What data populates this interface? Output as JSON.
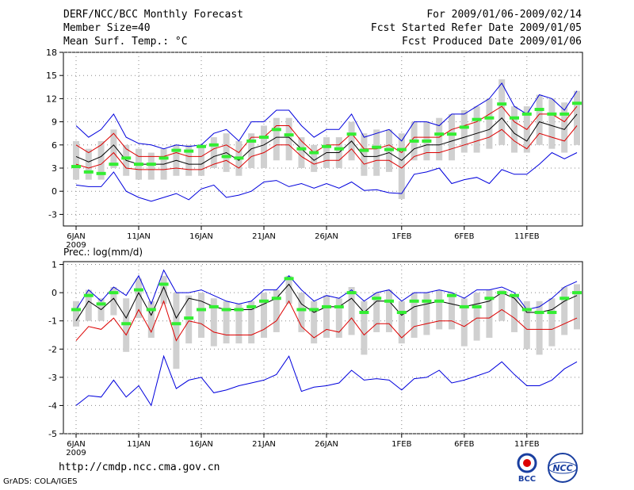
{
  "header": {
    "title": "DERF/NCC/BCC Monthly Forecast",
    "member_size": "Member Size=40",
    "variable": "Mean Surf. Temp.: °C",
    "period": "For 2009/01/06-2009/02/14",
    "started": "Fcst Started Refer Date 2009/01/05",
    "produced": "Fcst Produced Date 2009/01/06"
  },
  "footer": {
    "url": "http://cmdp.ncc.cma.gov.cn",
    "grads": "GrADS: COLA/IGES"
  },
  "logos": {
    "bcc": "BCC",
    "ncc": "NCC"
  },
  "colors": {
    "mean": "#000000",
    "spread": "#dd0000",
    "extreme": "#0000dd",
    "box": "#d0d0d0",
    "obs": "#33ee33"
  },
  "chart_data": [
    {
      "type": "line",
      "title": "Mean Surf. Temp.: °C",
      "ylim": [
        -4.5,
        18
      ],
      "yticks": [
        -3,
        0,
        3,
        6,
        9,
        12,
        15,
        18
      ],
      "xticks": [
        {
          "day": 0,
          "label": "6JAN",
          "sub": "2009"
        },
        {
          "day": 5,
          "label": "11JAN"
        },
        {
          "day": 10,
          "label": "16JAN"
        },
        {
          "day": 15,
          "label": "21JAN"
        },
        {
          "day": 20,
          "label": "26JAN"
        },
        {
          "day": 26,
          "label": "1FEB"
        },
        {
          "day": 31,
          "label": "6FEB"
        },
        {
          "day": 36,
          "label": "11FEB"
        }
      ],
      "series": [
        {
          "name": "max",
          "color": "#0000dd",
          "values": [
            8.5,
            7,
            8,
            10,
            7,
            6.2,
            6,
            5.5,
            6,
            5.8,
            6,
            7.5,
            8,
            6.5,
            9,
            9,
            10.5,
            10.5,
            8.5,
            7,
            8,
            8,
            10,
            7,
            7.5,
            8,
            6.5,
            9,
            9,
            8.5,
            10,
            10,
            11,
            12,
            14,
            11,
            10,
            12.5,
            12,
            10.5,
            13
          ]
        },
        {
          "name": "upper",
          "color": "#dd0000",
          "values": [
            6,
            5,
            6,
            7.5,
            5.5,
            4.5,
            4.5,
            4.5,
            5,
            4.5,
            4.5,
            5.5,
            6,
            5,
            7,
            7,
            8.5,
            8.5,
            6.5,
            5,
            6,
            6,
            7.5,
            5.5,
            5.5,
            6,
            5,
            7,
            7,
            7,
            8,
            8.5,
            9,
            10,
            11,
            9,
            8,
            10,
            10,
            9,
            11
          ]
        },
        {
          "name": "mean",
          "color": "#000000",
          "values": [
            4.5,
            3.8,
            4.5,
            6,
            4,
            3.5,
            3.5,
            3.5,
            4,
            3.5,
            3.5,
            4.5,
            5,
            4,
            5.5,
            6,
            7,
            7,
            5.5,
            4,
            5,
            5,
            6.5,
            4.5,
            4.5,
            5,
            4,
            5.5,
            6,
            6,
            6.5,
            7,
            7.5,
            8,
            9.5,
            7.5,
            6.5,
            9,
            8.5,
            8,
            10
          ]
        },
        {
          "name": "lower",
          "color": "#dd0000",
          "values": [
            3.5,
            3,
            3.5,
            5,
            3,
            2.8,
            2.8,
            2.8,
            3,
            2.8,
            2.8,
            3.5,
            4,
            3,
            4.5,
            5,
            6,
            6,
            4.5,
            3.5,
            4,
            4,
            5.5,
            3.5,
            4,
            4,
            3,
            4.5,
            5,
            5,
            5.5,
            6,
            6.5,
            7,
            8,
            6.5,
            5.5,
            7.5,
            7,
            6.5,
            8.5
          ]
        },
        {
          "name": "min",
          "color": "#0000dd",
          "values": [
            0.8,
            0.6,
            0.6,
            2.5,
            0,
            -0.8,
            -1.3,
            -0.8,
            -0.3,
            -1.1,
            0.3,
            0.8,
            -0.8,
            -0.5,
            0,
            1.2,
            1.4,
            0.6,
            1,
            0.4,
            1,
            0.4,
            1.2,
            0.1,
            0.2,
            -0.2,
            -0.3,
            2.2,
            2.5,
            3,
            1,
            1.5,
            1.8,
            1,
            2.8,
            2.2,
            2.2,
            3.5,
            5,
            4.2,
            5
          ]
        },
        {
          "name": "obs",
          "color": "#33ee33",
          "values": [
            3.2,
            2.5,
            2.3,
            3.5,
            4.3,
            3.5,
            3.5,
            4.3,
            5.3,
            5.2,
            5.8,
            6,
            4.5,
            4.3,
            6.5,
            7,
            8,
            7.3,
            5.5,
            5,
            5.8,
            5.5,
            7.4,
            5.3,
            5.7,
            5.4,
            5.4,
            6.5,
            6.5,
            7.4,
            7.4,
            8.3,
            9.3,
            9.5,
            11.3,
            9.5,
            10,
            10.6,
            10,
            10,
            11.4
          ]
        }
      ],
      "box_low": [
        1.5,
        1.5,
        1.5,
        3,
        2,
        1.5,
        1.5,
        1.5,
        2,
        2,
        2,
        3,
        2.5,
        2,
        3,
        3,
        4,
        4,
        3,
        2.5,
        3,
        3,
        4,
        2,
        2,
        2.5,
        -1,
        4,
        4,
        4,
        4,
        5,
        5,
        5.5,
        6,
        5,
        5,
        6,
        5.5,
        5,
        6
      ],
      "box_high": [
        6.5,
        5.5,
        6.5,
        8,
        6,
        5.5,
        5,
        5.5,
        6,
        6,
        6,
        7,
        7.5,
        6.5,
        7.5,
        8.5,
        9.5,
        9.5,
        7,
        6,
        7,
        7,
        9,
        7.5,
        8,
        8,
        7.5,
        9,
        9,
        9.5,
        10,
        10.5,
        11,
        12,
        14.5,
        11,
        11,
        12.5,
        12,
        11.5,
        13
      ]
    },
    {
      "type": "line",
      "title": "Prec.: log(mm/d)",
      "ylim": [
        -5,
        1.1
      ],
      "yticks": [
        -5,
        -4,
        -3,
        -2,
        -1,
        0,
        1
      ],
      "xticks": [
        {
          "day": 0,
          "label": "6JAN",
          "sub": "2009"
        },
        {
          "day": 5,
          "label": "11JAN"
        },
        {
          "day": 10,
          "label": "16JAN"
        },
        {
          "day": 15,
          "label": "21JAN"
        },
        {
          "day": 20,
          "label": "26JAN"
        },
        {
          "day": 26,
          "label": "1FEB"
        },
        {
          "day": 31,
          "label": "6FEB"
        },
        {
          "day": 36,
          "label": "11FEB"
        }
      ],
      "series": [
        {
          "name": "max",
          "color": "#0000dd",
          "values": [
            -0.6,
            0.1,
            -0.3,
            0.2,
            -0.1,
            0.6,
            -0.4,
            0.8,
            0,
            0,
            0.1,
            -0.1,
            -0.3,
            -0.4,
            -0.3,
            0.1,
            0.1,
            0.6,
            0.1,
            -0.3,
            -0.1,
            -0.2,
            0.1,
            -0.3,
            0,
            0.1,
            -0.3,
            0,
            0,
            0.1,
            0,
            -0.2,
            0.1,
            0.1,
            0.2,
            0,
            -0.6,
            -0.5,
            -0.2,
            0.2,
            0.4
          ]
        },
        {
          "name": "mean",
          "color": "#000000",
          "values": [
            -1,
            -0.3,
            -0.6,
            -0.2,
            -0.9,
            0,
            -0.8,
            0.2,
            -0.9,
            -0.2,
            -0.3,
            -0.5,
            -0.6,
            -0.6,
            -0.6,
            -0.4,
            -0.2,
            0.3,
            -0.4,
            -0.7,
            -0.5,
            -0.5,
            -0.2,
            -0.7,
            -0.3,
            -0.3,
            -0.8,
            -0.5,
            -0.4,
            -0.3,
            -0.4,
            -0.5,
            -0.4,
            -0.3,
            0,
            -0.2,
            -0.7,
            -0.7,
            -0.6,
            -0.3,
            -0.1
          ]
        },
        {
          "name": "lower",
          "color": "#dd0000",
          "values": [
            -1.7,
            -1.2,
            -1.3,
            -0.9,
            -1.5,
            -0.6,
            -1.4,
            -0.3,
            -1.7,
            -1,
            -1.1,
            -1.4,
            -1.5,
            -1.5,
            -1.5,
            -1.3,
            -1,
            -0.3,
            -1.2,
            -1.6,
            -1.3,
            -1.4,
            -0.9,
            -1.5,
            -1.1,
            -1.1,
            -1.6,
            -1.2,
            -1.1,
            -1,
            -1,
            -1.2,
            -0.9,
            -0.9,
            -0.6,
            -0.9,
            -1.3,
            -1.3,
            -1.3,
            -1.1,
            -0.9
          ]
        },
        {
          "name": "min",
          "color": "#0000dd",
          "values": [
            -4,
            -3.65,
            -3.7,
            -3.1,
            -3.7,
            -3.3,
            -4,
            -2.25,
            -3.4,
            -3.1,
            -3,
            -3.55,
            -3.45,
            -3.3,
            -3.2,
            -3.1,
            -2.9,
            -2.25,
            -3.5,
            -3.35,
            -3.3,
            -3.2,
            -2.75,
            -3.1,
            -3.05,
            -3.1,
            -3.45,
            -3.05,
            -3,
            -2.75,
            -3.2,
            -3.1,
            -2.95,
            -2.8,
            -2.45,
            -2.9,
            -3.3,
            -3.3,
            -3.1,
            -2.7,
            -2.45
          ]
        },
        {
          "name": "obs",
          "color": "#33ee33",
          "values": [
            -0.6,
            -0.1,
            -0.4,
            0,
            -1.1,
            0.1,
            -0.6,
            0.3,
            -1.1,
            -0.9,
            -0.6,
            -0.5,
            -0.6,
            -0.6,
            -0.5,
            -0.3,
            -0.2,
            0.5,
            -0.6,
            -0.6,
            -0.5,
            -0.5,
            0,
            -0.7,
            -0.2,
            -0.3,
            -0.7,
            -0.3,
            -0.3,
            -0.3,
            -0.1,
            -0.5,
            -0.5,
            -0.2,
            0,
            -0.1,
            -0.6,
            -0.7,
            -0.7,
            -0.2,
            0
          ]
        }
      ],
      "box_low": [
        -1.2,
        -1,
        -1,
        -0.8,
        -2.1,
        -0.9,
        -1.6,
        -0.4,
        -2.7,
        -1.8,
        -1.6,
        -1.9,
        -1.8,
        -1.8,
        -1.8,
        -1.6,
        -1.4,
        -0.4,
        -1.4,
        -1.8,
        -1.6,
        -1.6,
        -1.5,
        -2.2,
        -1.4,
        -1.4,
        -1.8,
        -1.6,
        -1.5,
        -1.3,
        -1.3,
        -1.9,
        -1.7,
        -1.6,
        -1,
        -1.4,
        -2,
        -2.2,
        -1.9,
        -1.5,
        -1.3
      ],
      "box_high": [
        -0.3,
        0.1,
        -0.2,
        0.2,
        -0.2,
        0.5,
        -0.3,
        0.6,
        0,
        -0.1,
        0,
        -0.2,
        -0.3,
        -0.4,
        -0.3,
        0,
        0.1,
        0.6,
        0,
        -0.3,
        -0.1,
        -0.2,
        0.2,
        -0.3,
        0,
        0.1,
        -0.3,
        0,
        0,
        0.1,
        0,
        -0.2,
        0,
        0.1,
        0.1,
        -0.1,
        -0.3,
        -0.3,
        -0.2,
        0.2,
        0.3
      ]
    }
  ]
}
